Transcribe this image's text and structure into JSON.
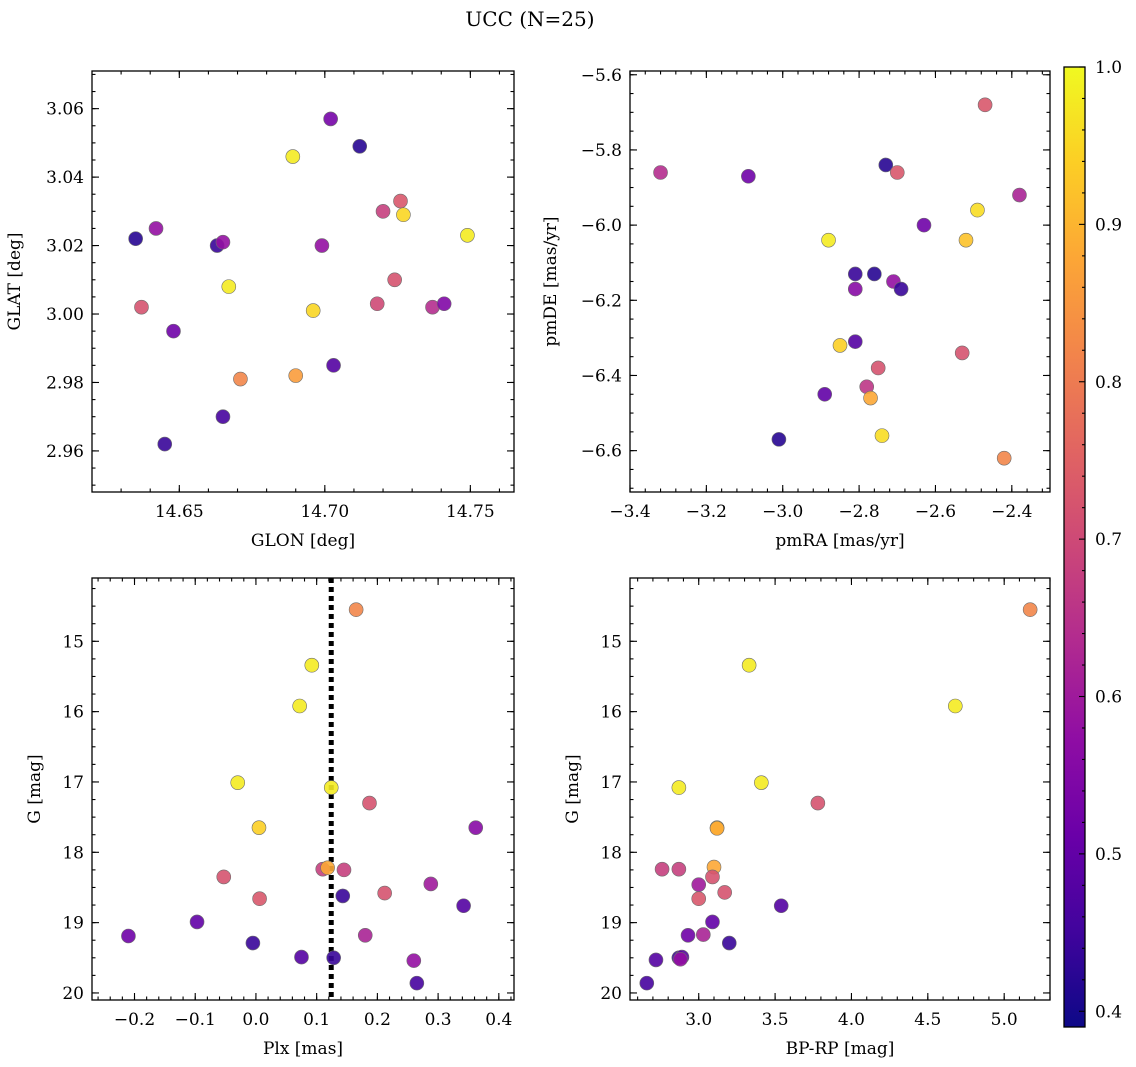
{
  "chart_data": {
    "type": "scatter",
    "title": "UCC (N=25)",
    "colorbar": {
      "range": [
        0.39,
        1.0
      ],
      "ticks": [
        0.4,
        0.5,
        0.6,
        0.7,
        0.8,
        0.9,
        1.0
      ],
      "tick_labels": [
        "0.4",
        "0.5",
        "0.6",
        "0.7",
        "0.8",
        "0.9",
        "1.0"
      ],
      "colormap": "plasma"
    },
    "panels": [
      {
        "id": "glon-glat",
        "xlabel": "GLON [deg]",
        "ylabel": "GLAT [deg]",
        "xlim": [
          14.62,
          14.765
        ],
        "ylim": [
          2.948,
          3.071
        ],
        "xticks": [
          14.65,
          14.7,
          14.75
        ],
        "xtick_labels": [
          "14.65",
          "14.70",
          "14.75"
        ],
        "yticks": [
          2.96,
          2.98,
          3.0,
          3.02,
          3.04,
          3.06
        ],
        "ytick_labels": [
          "2.96",
          "2.98",
          "3.00",
          "3.02",
          "3.04",
          "3.06"
        ],
        "y_inverted": false,
        "points": [
          {
            "x": 14.635,
            "y": 3.022,
            "c": 0.42
          },
          {
            "x": 14.642,
            "y": 3.025,
            "c": 0.58
          },
          {
            "x": 14.637,
            "y": 3.002,
            "c": 0.72
          },
          {
            "x": 14.648,
            "y": 2.995,
            "c": 0.52
          },
          {
            "x": 14.645,
            "y": 2.962,
            "c": 0.44
          },
          {
            "x": 14.663,
            "y": 3.02,
            "c": 0.44
          },
          {
            "x": 14.665,
            "y": 3.021,
            "c": 0.58
          },
          {
            "x": 14.667,
            "y": 3.008,
            "c": 0.98
          },
          {
            "x": 14.665,
            "y": 2.97,
            "c": 0.46
          },
          {
            "x": 14.671,
            "y": 2.981,
            "c": 0.82
          },
          {
            "x": 14.689,
            "y": 3.046,
            "c": 0.98
          },
          {
            "x": 14.69,
            "y": 2.982,
            "c": 0.86
          },
          {
            "x": 14.696,
            "y": 3.001,
            "c": 0.95
          },
          {
            "x": 14.699,
            "y": 3.02,
            "c": 0.58
          },
          {
            "x": 14.702,
            "y": 3.057,
            "c": 0.53
          },
          {
            "x": 14.703,
            "y": 2.985,
            "c": 0.48
          },
          {
            "x": 14.712,
            "y": 3.049,
            "c": 0.42
          },
          {
            "x": 14.718,
            "y": 3.003,
            "c": 0.7
          },
          {
            "x": 14.72,
            "y": 3.03,
            "c": 0.68
          },
          {
            "x": 14.724,
            "y": 3.01,
            "c": 0.72
          },
          {
            "x": 14.726,
            "y": 3.033,
            "c": 0.73
          },
          {
            "x": 14.727,
            "y": 3.029,
            "c": 0.95
          },
          {
            "x": 14.737,
            "y": 3.002,
            "c": 0.64
          },
          {
            "x": 14.741,
            "y": 3.003,
            "c": 0.55
          },
          {
            "x": 14.749,
            "y": 3.023,
            "c": 0.98
          }
        ]
      },
      {
        "id": "pmra-pmde",
        "xlabel": "pmRA [mas/yr]",
        "ylabel": "pmDE [mas/yr]",
        "xlim": [
          -3.4,
          -2.3
        ],
        "ylim": [
          -6.71,
          -5.59
        ],
        "xticks": [
          -3.4,
          -3.2,
          -3.0,
          -2.8,
          -2.6,
          -2.4
        ],
        "xtick_labels": [
          "−3.4",
          "−3.2",
          "−3.0",
          "−2.8",
          "−2.6",
          "−2.4"
        ],
        "yticks": [
          -6.6,
          -6.4,
          -6.2,
          -6.0,
          -5.8,
          -5.6
        ],
        "ytick_labels": [
          "−6.6",
          "−6.4",
          "−6.2",
          "−6.0",
          "−5.8",
          "−5.6"
        ],
        "y_inverted": false,
        "points": [
          {
            "x": -3.32,
            "y": -5.86,
            "c": 0.64
          },
          {
            "x": -3.09,
            "y": -5.87,
            "c": 0.52
          },
          {
            "x": -2.73,
            "y": -5.84,
            "c": 0.42
          },
          {
            "x": -2.7,
            "y": -5.86,
            "c": 0.73
          },
          {
            "x": -2.47,
            "y": -5.68,
            "c": 0.73
          },
          {
            "x": -2.38,
            "y": -5.92,
            "c": 0.62
          },
          {
            "x": -2.49,
            "y": -5.96,
            "c": 0.96
          },
          {
            "x": -2.63,
            "y": -6.0,
            "c": 0.52
          },
          {
            "x": -2.88,
            "y": -6.04,
            "c": 0.98
          },
          {
            "x": -2.52,
            "y": -6.04,
            "c": 0.92
          },
          {
            "x": -2.81,
            "y": -6.13,
            "c": 0.44
          },
          {
            "x": -2.76,
            "y": -6.13,
            "c": 0.42
          },
          {
            "x": -2.71,
            "y": -6.15,
            "c": 0.58
          },
          {
            "x": -2.81,
            "y": -6.17,
            "c": 0.56
          },
          {
            "x": -2.69,
            "y": -6.17,
            "c": 0.44
          },
          {
            "x": -2.81,
            "y": -6.31,
            "c": 0.48
          },
          {
            "x": -2.85,
            "y": -6.32,
            "c": 0.94
          },
          {
            "x": -2.53,
            "y": -6.34,
            "c": 0.72
          },
          {
            "x": -2.75,
            "y": -6.38,
            "c": 0.72
          },
          {
            "x": -2.78,
            "y": -6.43,
            "c": 0.66
          },
          {
            "x": -2.89,
            "y": -6.45,
            "c": 0.5
          },
          {
            "x": -2.77,
            "y": -6.46,
            "c": 0.88
          },
          {
            "x": -3.01,
            "y": -6.57,
            "c": 0.42
          },
          {
            "x": -2.74,
            "y": -6.56,
            "c": 0.96
          },
          {
            "x": -2.42,
            "y": -6.62,
            "c": 0.82
          }
        ]
      },
      {
        "id": "plx-g",
        "xlabel": "Plx [mas]",
        "ylabel": "G [mag]",
        "xlim": [
          -0.27,
          0.425
        ],
        "ylim": [
          14.1,
          20.1
        ],
        "xticks": [
          -0.2,
          -0.1,
          0.0,
          0.1,
          0.2,
          0.3,
          0.4
        ],
        "xtick_labels": [
          "−0.2",
          "−0.1",
          "0.0",
          "0.1",
          "0.2",
          "0.3",
          "0.4"
        ],
        "yticks": [
          15,
          16,
          17,
          18,
          19,
          20
        ],
        "ytick_labels": [
          "15",
          "16",
          "17",
          "18",
          "19",
          "20"
        ],
        "y_inverted": true,
        "vline": 0.124,
        "points": [
          {
            "x": 0.165,
            "y": 14.55,
            "c": 0.82
          },
          {
            "x": 0.092,
            "y": 15.34,
            "c": 0.98
          },
          {
            "x": 0.072,
            "y": 15.92,
            "c": 0.98
          },
          {
            "x": -0.03,
            "y": 17.01,
            "c": 0.98
          },
          {
            "x": 0.124,
            "y": 17.08,
            "c": 0.98
          },
          {
            "x": 0.187,
            "y": 17.3,
            "c": 0.72
          },
          {
            "x": 0.005,
            "y": 17.65,
            "c": 0.94
          },
          {
            "x": 0.362,
            "y": 17.65,
            "c": 0.56
          },
          {
            "x": 0.11,
            "y": 18.24,
            "c": 0.68
          },
          {
            "x": 0.118,
            "y": 18.22,
            "c": 0.88
          },
          {
            "x": 0.145,
            "y": 18.25,
            "c": 0.68
          },
          {
            "x": -0.053,
            "y": 18.35,
            "c": 0.72
          },
          {
            "x": 0.288,
            "y": 18.45,
            "c": 0.6
          },
          {
            "x": 0.212,
            "y": 18.58,
            "c": 0.72
          },
          {
            "x": 0.143,
            "y": 18.62,
            "c": 0.44
          },
          {
            "x": 0.006,
            "y": 18.66,
            "c": 0.73
          },
          {
            "x": 0.342,
            "y": 18.76,
            "c": 0.48
          },
          {
            "x": -0.097,
            "y": 18.99,
            "c": 0.5
          },
          {
            "x": 0.18,
            "y": 19.18,
            "c": 0.62
          },
          {
            "x": -0.21,
            "y": 19.19,
            "c": 0.52
          },
          {
            "x": -0.005,
            "y": 19.29,
            "c": 0.44
          },
          {
            "x": 0.075,
            "y": 19.49,
            "c": 0.48
          },
          {
            "x": 0.128,
            "y": 19.5,
            "c": 0.44
          },
          {
            "x": 0.26,
            "y": 19.54,
            "c": 0.58
          },
          {
            "x": 0.265,
            "y": 19.86,
            "c": 0.46
          }
        ]
      },
      {
        "id": "bprp-g",
        "xlabel": "BP-RP [mag]",
        "ylabel": "G [mag]",
        "xlim": [
          2.55,
          5.3
        ],
        "ylim": [
          14.1,
          20.1
        ],
        "xticks": [
          3.0,
          3.5,
          4.0,
          4.5,
          5.0
        ],
        "xtick_labels": [
          "3.0",
          "3.5",
          "4.0",
          "4.5",
          "5.0"
        ],
        "yticks": [
          15,
          16,
          17,
          18,
          19,
          20
        ],
        "ytick_labels": [
          "15",
          "16",
          "17",
          "18",
          "19",
          "20"
        ],
        "y_inverted": true,
        "points": [
          {
            "x": 5.17,
            "y": 14.55,
            "c": 0.82
          },
          {
            "x": 3.33,
            "y": 15.34,
            "c": 0.98
          },
          {
            "x": 4.68,
            "y": 15.92,
            "c": 0.98
          },
          {
            "x": 3.41,
            "y": 17.01,
            "c": 0.98
          },
          {
            "x": 2.87,
            "y": 17.08,
            "c": 0.98
          },
          {
            "x": 3.78,
            "y": 17.3,
            "c": 0.72
          },
          {
            "x": 3.12,
            "y": 17.65,
            "c": 0.94
          },
          {
            "x": 3.12,
            "y": 17.66,
            "c": 0.88
          },
          {
            "x": 2.76,
            "y": 18.24,
            "c": 0.68
          },
          {
            "x": 2.87,
            "y": 18.24,
            "c": 0.68
          },
          {
            "x": 3.1,
            "y": 18.21,
            "c": 0.88
          },
          {
            "x": 3.09,
            "y": 18.35,
            "c": 0.72
          },
          {
            "x": 3.0,
            "y": 18.46,
            "c": 0.6
          },
          {
            "x": 3.17,
            "y": 18.57,
            "c": 0.72
          },
          {
            "x": 3.0,
            "y": 18.66,
            "c": 0.73
          },
          {
            "x": 3.54,
            "y": 18.76,
            "c": 0.48
          },
          {
            "x": 3.09,
            "y": 18.99,
            "c": 0.5
          },
          {
            "x": 2.93,
            "y": 19.18,
            "c": 0.52
          },
          {
            "x": 3.03,
            "y": 19.17,
            "c": 0.62
          },
          {
            "x": 3.2,
            "y": 19.29,
            "c": 0.44
          },
          {
            "x": 2.72,
            "y": 19.53,
            "c": 0.48
          },
          {
            "x": 2.87,
            "y": 19.5,
            "c": 0.44
          },
          {
            "x": 2.89,
            "y": 19.49,
            "c": 0.48
          },
          {
            "x": 2.88,
            "y": 19.52,
            "c": 0.58
          },
          {
            "x": 2.66,
            "y": 19.86,
            "c": 0.46
          }
        ]
      }
    ]
  }
}
